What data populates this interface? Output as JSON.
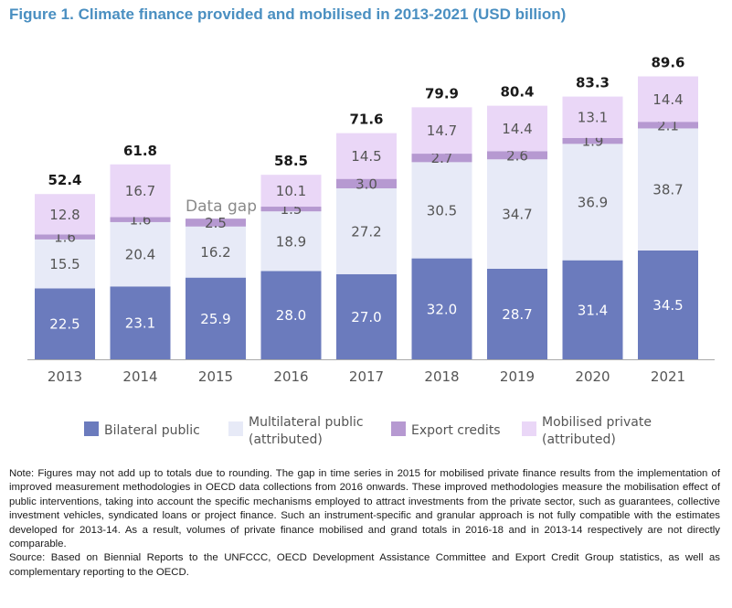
{
  "title": "Figure 1.  Climate finance provided and mobilised in 2013-2021 (USD billion)",
  "colors": {
    "title": "#4a8fc1",
    "bilateral_public": "#6b7bbd",
    "multilateral_public": "#e7eaf7",
    "export_credits": "#b699d1",
    "mobilised_private": "#ead7f7",
    "light_text": "#ffffff",
    "dark_text": "#555555",
    "axis": "#aaaaaa"
  },
  "chart_data": {
    "type": "bar",
    "stacked": true,
    "categories": [
      "2013",
      "2014",
      "2015",
      "2016",
      "2017",
      "2018",
      "2019",
      "2020",
      "2021"
    ],
    "series": [
      {
        "name": "Bilateral public",
        "values": [
          22.5,
          23.1,
          25.9,
          28.0,
          27.0,
          32.0,
          28.7,
          31.4,
          34.5
        ],
        "labels": [
          "22.5",
          "23.1",
          "25.9",
          "28.0",
          "27.0",
          "32.0",
          "28.7",
          "31.4",
          "34.5"
        ]
      },
      {
        "name": "Multilateral public (attributed)",
        "values": [
          15.5,
          20.4,
          16.2,
          18.9,
          27.2,
          30.5,
          34.7,
          36.9,
          38.7
        ],
        "labels": [
          "15.5",
          "20.4",
          "16.2",
          "18.9",
          "27.2",
          "30.5",
          "34.7",
          "36.9",
          "38.7"
        ]
      },
      {
        "name": "Export credits",
        "values": [
          1.6,
          1.6,
          2.5,
          1.5,
          3.0,
          2.7,
          2.6,
          1.9,
          2.1
        ],
        "labels": [
          "1.6",
          "1.6",
          "2.5",
          "1.5",
          "3.0",
          "2.7",
          "2.6",
          "1.9",
          "2.1"
        ]
      },
      {
        "name": "Mobilised private (attributed)",
        "values": [
          12.8,
          16.7,
          null,
          10.1,
          14.5,
          14.7,
          14.4,
          13.1,
          14.4
        ],
        "labels": [
          "12.8",
          "16.7",
          "",
          "10.1",
          "14.5",
          "14.7",
          "14.4",
          "13.1",
          "14.4"
        ]
      }
    ],
    "totals": [
      52.4,
      61.8,
      null,
      58.5,
      71.6,
      79.9,
      80.4,
      83.3,
      89.6
    ],
    "total_labels": [
      "52.4",
      "61.8",
      "",
      "58.5",
      "71.6",
      "79.9",
      "80.4",
      "83.3",
      "89.6"
    ],
    "gap_annotation": {
      "category": "2015",
      "text": "Data gap"
    },
    "legend_entries": [
      {
        "lines": [
          "Bilateral public"
        ]
      },
      {
        "lines": [
          "Multilateral public",
          "(attributed)"
        ]
      },
      {
        "lines": [
          "Export credits"
        ]
      },
      {
        "lines": [
          "Mobilised private",
          "(attributed)"
        ]
      }
    ],
    "legend_position": "bottom",
    "grid": false,
    "xlabel": "",
    "ylabel": "",
    "ylim": [
      0,
      90
    ]
  },
  "note": "Note: Figures may not add up to totals due to rounding. The gap in time series in 2015 for mobilised private finance results from the implementation of improved measurement methodologies in OECD data collections from 2016 onwards. These improved methodologies measure the mobilisation effect of public interventions, taking into account the specific mechanisms employed to attract investments from the private sector, such as guarantees, collective investment vehicles, syndicated loans or project finance. Such an instrument-specific and granular approach is not fully compatible with the estimates developed for 2013-14. As a result, volumes of private finance mobilised and grand totals in 2016-18 and in 2013-14 respectively are not directly comparable.",
  "source": "Source: Based on Biennial Reports to the UNFCCC, OECD Development Assistance Committee and Export Credit Group statistics, as well as complementary reporting to the OECD."
}
